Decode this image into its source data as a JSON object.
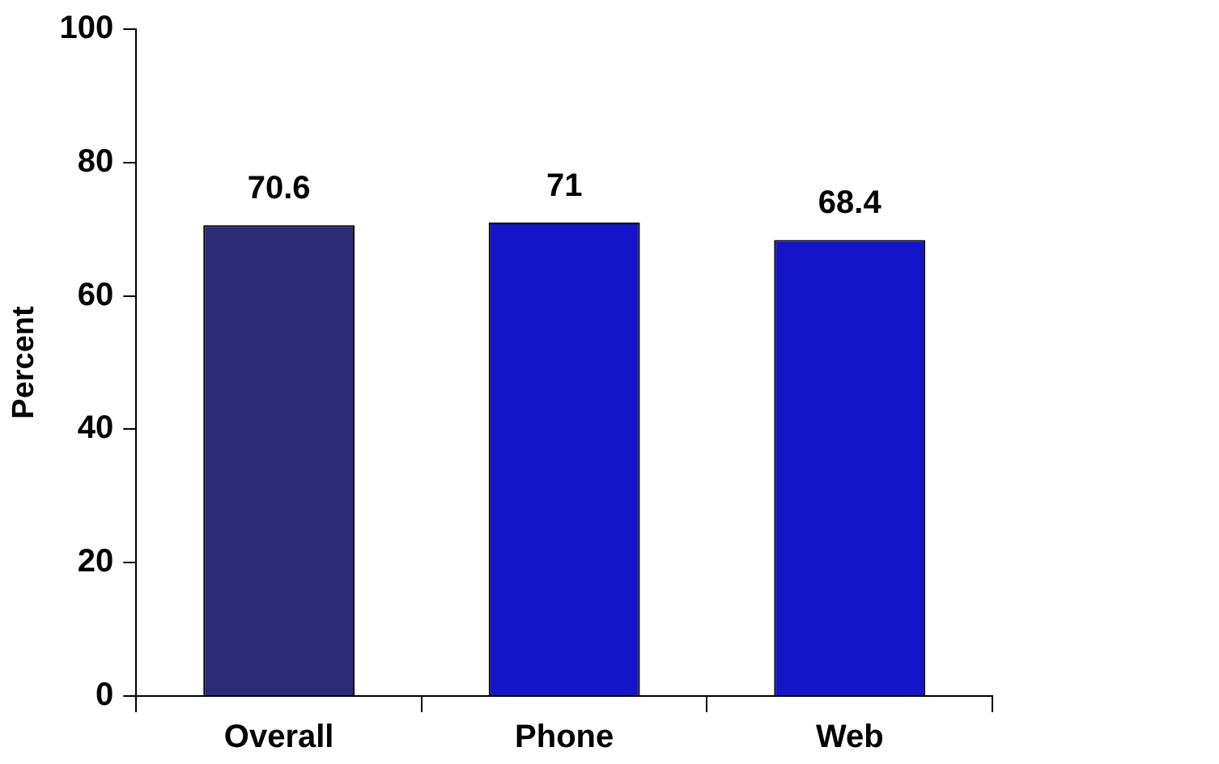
{
  "chart_data": {
    "type": "bar",
    "ylabel": "Percent",
    "categories": [
      "Overall",
      "Phone",
      "Web"
    ],
    "values": [
      70.6,
      71,
      68.4
    ],
    "colors": [
      "#2b2b78",
      "#1414c8",
      "#1414c8"
    ],
    "ylim": [
      0,
      100
    ],
    "yticks": [
      0,
      20,
      40,
      60,
      80,
      100
    ],
    "grid": false,
    "legend": false,
    "data_labels": true
  }
}
